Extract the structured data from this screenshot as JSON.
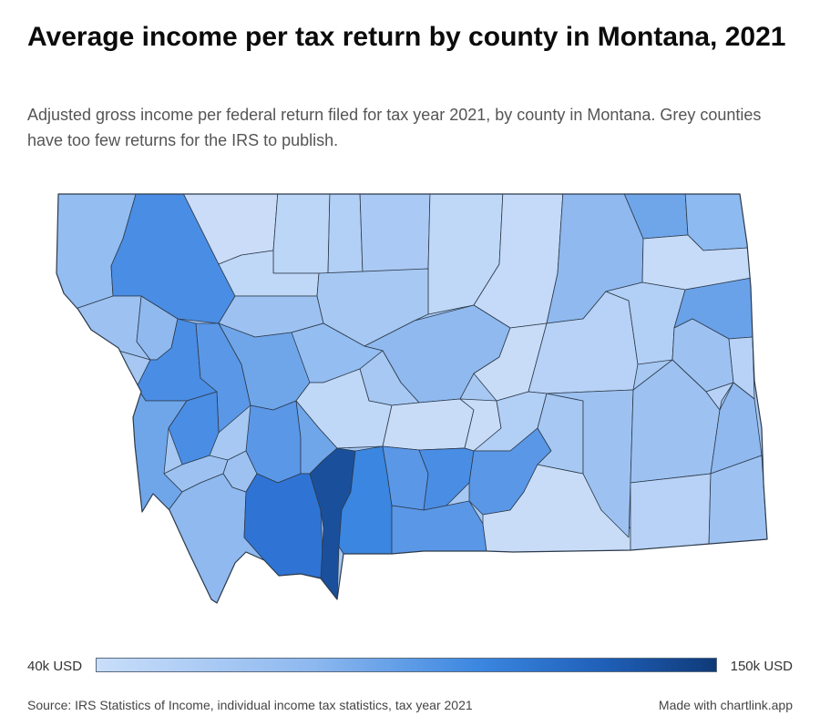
{
  "title": "Average income per tax return by county in Montana, 2021",
  "subtitle": "Adjusted gross income per federal return filed for tax year 2021, by county in Montana. Grey counties have too few returns for the IRS to publish.",
  "legend": {
    "min_label": "40k USD",
    "max_label": "150k USD"
  },
  "footer": {
    "source": "Source: IRS Statistics of Income, individual income tax statistics, tax year 2021",
    "credit": "Made with chartlink.app"
  },
  "colors": {
    "scale": [
      "#c9defa",
      "#8db8ef",
      "#3a86e0",
      "#1f5fb8",
      "#0f3a78"
    ],
    "border": "#2d3a4a",
    "background": "#ffffff"
  },
  "chart_data": {
    "type": "choropleth",
    "region": "Montana counties",
    "scale_min": 40000,
    "scale_max": 150000,
    "unit": "USD",
    "note": "Individual county values are not labeled on the map; shading encodes income per return."
  }
}
